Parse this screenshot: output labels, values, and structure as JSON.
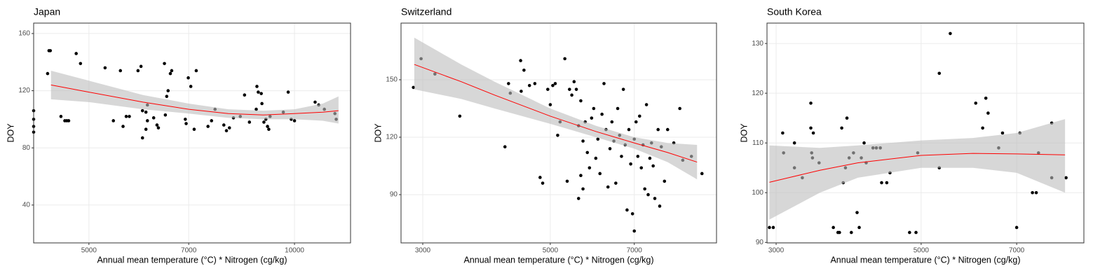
{
  "chart_data": [
    {
      "type": "scatter",
      "title": "Japan",
      "x_label": "Annual mean temperature (°C) * Nitrogen (cg/kg)",
      "y_label": "DOY",
      "log_x": true,
      "grid": true,
      "point_color": "#000000",
      "xlim": [
        4150,
        12080
      ],
      "ylim": [
        13.5,
        167.3
      ],
      "xticks": [
        5000,
        7000,
        10000
      ],
      "yticks": [
        40,
        80,
        120,
        160
      ],
      "x": [
        4150,
        4150,
        4150,
        4150,
        4350,
        4370,
        4390,
        4550,
        4610,
        4640,
        4670,
        4790,
        4860,
        5280,
        5430,
        5560,
        5610,
        5670,
        5730,
        5900,
        5960,
        5990,
        5990,
        6060,
        6060,
        6090,
        6090,
        6220,
        6290,
        6320,
        6450,
        6470,
        6500,
        6530,
        6580,
        6610,
        6920,
        6940,
        6990,
        7050,
        7130,
        7180,
        7470,
        7560,
        7650,
        7880,
        7950,
        8030,
        8140,
        8330,
        8450,
        8590,
        8790,
        8810,
        8850,
        8940,
        8960,
        9020,
        9080,
        9130,
        9170,
        9210,
        9630,
        9790,
        9890,
        10000,
        10720,
        10850,
        11060,
        11460,
        11510
      ],
      "y": [
        106,
        100,
        95,
        91,
        132,
        148,
        148,
        102,
        99,
        99,
        99,
        146,
        139,
        136,
        99,
        134,
        95,
        102,
        102,
        134,
        137,
        106,
        87,
        93,
        105,
        110,
        99,
        101,
        96,
        94,
        139,
        103,
        116,
        120,
        132,
        134,
        100,
        97,
        129,
        123,
        93,
        134,
        95,
        99,
        107,
        96,
        92,
        94,
        101,
        102,
        117,
        98,
        107,
        123,
        119,
        118,
        111,
        98,
        100,
        95,
        93,
        102,
        105,
        119,
        100,
        99,
        112,
        110,
        107,
        104,
        100
      ],
      "fit": {
        "color": "#ff0000",
        "band_color": "#bdbdbd",
        "x": [
          4400,
          5000,
          6000,
          7000,
          8000,
          9000,
          10000,
          11000,
          11600
        ],
        "y": [
          124,
          119,
          112,
          107,
          104,
          103,
          104,
          105,
          106
        ],
        "lower": [
          114,
          112,
          107,
          104,
          101,
          100,
          100,
          99,
          97
        ],
        "upper": [
          134,
          127,
          117,
          111,
          107,
          106,
          107,
          111,
          116
        ]
      }
    },
    {
      "type": "scatter",
      "title": "Switzerland",
      "x_label": "Annual mean temperature (°C) * Nitrogen (cg/kg)",
      "y_label": "DOY",
      "log_x": true,
      "grid": true,
      "point_color": "#000000",
      "xlim": [
        2750,
        9730
      ],
      "ylim": [
        64.8,
        179.6
      ],
      "xticks": [
        3000,
        5000,
        7000
      ],
      "yticks": [
        90,
        120,
        150
      ],
      "x": [
        2890,
        2980,
        3150,
        3480,
        4170,
        4230,
        4260,
        4440,
        4500,
        4450,
        4600,
        4700,
        4800,
        4850,
        4950,
        5000,
        5050,
        5100,
        5150,
        5200,
        5300,
        5350,
        5400,
        5450,
        5500,
        5550,
        5600,
        5600,
        5650,
        5650,
        5700,
        5700,
        5750,
        5800,
        5850,
        5900,
        5950,
        6000,
        6050,
        6100,
        6150,
        6200,
        6250,
        6300,
        6350,
        6400,
        6450,
        6500,
        6550,
        6600,
        6650,
        6700,
        6750,
        6800,
        6850,
        6900,
        6950,
        7000,
        7000,
        7050,
        7100,
        7150,
        7200,
        7250,
        7300,
        7350,
        7400,
        7450,
        7500,
        7550,
        7600,
        7700,
        7750,
        7800,
        7900,
        8000,
        8200,
        8400,
        8500,
        8800,
        9180
      ],
      "y": [
        146,
        161,
        153,
        131,
        115,
        148,
        143,
        160,
        155,
        144,
        147,
        148,
        99,
        96,
        145,
        137,
        147,
        148,
        121,
        128,
        161,
        97,
        145,
        142,
        149,
        145,
        126,
        88,
        100,
        139,
        93,
        118,
        128,
        112,
        104,
        130,
        135,
        109,
        119,
        101,
        132,
        148,
        124,
        94,
        114,
        128,
        118,
        96,
        135,
        121,
        110,
        145,
        116,
        82,
        124,
        106,
        80,
        71,
        119,
        128,
        110,
        131,
        104,
        116,
        93,
        137,
        90,
        109,
        117,
        105,
        88,
        124,
        84,
        115,
        97,
        124,
        117,
        135,
        108,
        110,
        101
      ],
      "fit": {
        "color": "#ff0000",
        "band_color": "#bdbdbd",
        "x": [
          2900,
          3500,
          4000,
          5000,
          6000,
          7000,
          8000,
          9000
        ],
        "y": [
          158,
          149,
          142,
          131,
          123,
          117,
          112,
          107
        ],
        "lower": [
          145,
          140,
          135,
          127,
          120,
          114,
          107,
          98
        ],
        "upper": [
          172,
          158,
          149,
          135,
          126,
          120,
          117,
          116
        ]
      }
    },
    {
      "type": "scatter",
      "title": "South Korea",
      "x_label": "Annual mean temperature (°C) * Nitrogen (cg/kg)",
      "y_label": "DOY",
      "log_x": true,
      "grid": true,
      "point_color": "#000000",
      "xlim": [
        2905,
        8870
      ],
      "ylim": [
        89.9,
        134.1
      ],
      "xticks": [
        3000,
        5000,
        7000
      ],
      "yticks": [
        90,
        100,
        110,
        120,
        130
      ],
      "x": [
        2930,
        2970,
        3070,
        3080,
        3200,
        3200,
        3290,
        3390,
        3390,
        3400,
        3410,
        3420,
        3490,
        3670,
        3730,
        3750,
        3780,
        3800,
        3830,
        3850,
        3880,
        3910,
        3940,
        3990,
        4020,
        4050,
        4090,
        4120,
        4220,
        4270,
        4330,
        4350,
        4430,
        4480,
        4800,
        4910,
        4940,
        5330,
        5330,
        5540,
        6060,
        6210,
        6280,
        6330,
        6570,
        6660,
        7000,
        7080,
        7400,
        7500,
        7560,
        7920,
        7920,
        8330
      ],
      "y": [
        93,
        93,
        112,
        108,
        105,
        110,
        103,
        118,
        113,
        108,
        107,
        112,
        106,
        93,
        92,
        92,
        113,
        102,
        105,
        115,
        107,
        92,
        108,
        96,
        93,
        107,
        110,
        106,
        109,
        109,
        109,
        102,
        102,
        104,
        92,
        92,
        108,
        105,
        124,
        132,
        118,
        113,
        119,
        116,
        109,
        112,
        93,
        112,
        100,
        100,
        108,
        114,
        103,
        103
      ],
      "fit": {
        "color": "#ff0000",
        "band_color": "#bdbdbd",
        "x": [
          2930,
          3500,
          4000,
          5000,
          6000,
          7000,
          8300
        ],
        "y": [
          102.1,
          104.5,
          106,
          107.5,
          107.9,
          107.8,
          107.6
        ],
        "lower": [
          94.6,
          100,
          103,
          105,
          105,
          104,
          100
        ],
        "upper": [
          109.5,
          109,
          109.5,
          110.5,
          111,
          112,
          114.8
        ]
      }
    }
  ]
}
